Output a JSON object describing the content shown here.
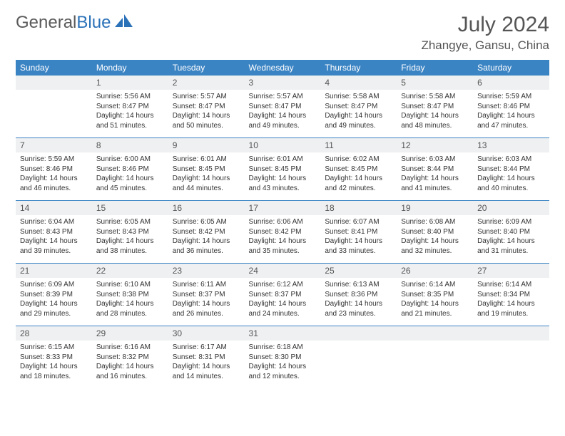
{
  "logo": {
    "text1": "General",
    "text2": "Blue"
  },
  "title": "July 2024",
  "location": "Zhangye, Gansu, China",
  "headers": [
    "Sunday",
    "Monday",
    "Tuesday",
    "Wednesday",
    "Thursday",
    "Friday",
    "Saturday"
  ],
  "colors": {
    "header_bg": "#3b84c4",
    "header_text": "#ffffff",
    "daynum_bg": "#eef0f1",
    "rule": "#3b84c4",
    "page_bg": "#ffffff",
    "text": "#333333",
    "title_color": "#555555"
  },
  "weeks": [
    {
      "nums": [
        "",
        "1",
        "2",
        "3",
        "4",
        "5",
        "6"
      ],
      "cells": [
        [],
        [
          "Sunrise: 5:56 AM",
          "Sunset: 8:47 PM",
          "Daylight: 14 hours",
          "and 51 minutes."
        ],
        [
          "Sunrise: 5:57 AM",
          "Sunset: 8:47 PM",
          "Daylight: 14 hours",
          "and 50 minutes."
        ],
        [
          "Sunrise: 5:57 AM",
          "Sunset: 8:47 PM",
          "Daylight: 14 hours",
          "and 49 minutes."
        ],
        [
          "Sunrise: 5:58 AM",
          "Sunset: 8:47 PM",
          "Daylight: 14 hours",
          "and 49 minutes."
        ],
        [
          "Sunrise: 5:58 AM",
          "Sunset: 8:47 PM",
          "Daylight: 14 hours",
          "and 48 minutes."
        ],
        [
          "Sunrise: 5:59 AM",
          "Sunset: 8:46 PM",
          "Daylight: 14 hours",
          "and 47 minutes."
        ]
      ]
    },
    {
      "nums": [
        "7",
        "8",
        "9",
        "10",
        "11",
        "12",
        "13"
      ],
      "cells": [
        [
          "Sunrise: 5:59 AM",
          "Sunset: 8:46 PM",
          "Daylight: 14 hours",
          "and 46 minutes."
        ],
        [
          "Sunrise: 6:00 AM",
          "Sunset: 8:46 PM",
          "Daylight: 14 hours",
          "and 45 minutes."
        ],
        [
          "Sunrise: 6:01 AM",
          "Sunset: 8:45 PM",
          "Daylight: 14 hours",
          "and 44 minutes."
        ],
        [
          "Sunrise: 6:01 AM",
          "Sunset: 8:45 PM",
          "Daylight: 14 hours",
          "and 43 minutes."
        ],
        [
          "Sunrise: 6:02 AM",
          "Sunset: 8:45 PM",
          "Daylight: 14 hours",
          "and 42 minutes."
        ],
        [
          "Sunrise: 6:03 AM",
          "Sunset: 8:44 PM",
          "Daylight: 14 hours",
          "and 41 minutes."
        ],
        [
          "Sunrise: 6:03 AM",
          "Sunset: 8:44 PM",
          "Daylight: 14 hours",
          "and 40 minutes."
        ]
      ]
    },
    {
      "nums": [
        "14",
        "15",
        "16",
        "17",
        "18",
        "19",
        "20"
      ],
      "cells": [
        [
          "Sunrise: 6:04 AM",
          "Sunset: 8:43 PM",
          "Daylight: 14 hours",
          "and 39 minutes."
        ],
        [
          "Sunrise: 6:05 AM",
          "Sunset: 8:43 PM",
          "Daylight: 14 hours",
          "and 38 minutes."
        ],
        [
          "Sunrise: 6:05 AM",
          "Sunset: 8:42 PM",
          "Daylight: 14 hours",
          "and 36 minutes."
        ],
        [
          "Sunrise: 6:06 AM",
          "Sunset: 8:42 PM",
          "Daylight: 14 hours",
          "and 35 minutes."
        ],
        [
          "Sunrise: 6:07 AM",
          "Sunset: 8:41 PM",
          "Daylight: 14 hours",
          "and 33 minutes."
        ],
        [
          "Sunrise: 6:08 AM",
          "Sunset: 8:40 PM",
          "Daylight: 14 hours",
          "and 32 minutes."
        ],
        [
          "Sunrise: 6:09 AM",
          "Sunset: 8:40 PM",
          "Daylight: 14 hours",
          "and 31 minutes."
        ]
      ]
    },
    {
      "nums": [
        "21",
        "22",
        "23",
        "24",
        "25",
        "26",
        "27"
      ],
      "cells": [
        [
          "Sunrise: 6:09 AM",
          "Sunset: 8:39 PM",
          "Daylight: 14 hours",
          "and 29 minutes."
        ],
        [
          "Sunrise: 6:10 AM",
          "Sunset: 8:38 PM",
          "Daylight: 14 hours",
          "and 28 minutes."
        ],
        [
          "Sunrise: 6:11 AM",
          "Sunset: 8:37 PM",
          "Daylight: 14 hours",
          "and 26 minutes."
        ],
        [
          "Sunrise: 6:12 AM",
          "Sunset: 8:37 PM",
          "Daylight: 14 hours",
          "and 24 minutes."
        ],
        [
          "Sunrise: 6:13 AM",
          "Sunset: 8:36 PM",
          "Daylight: 14 hours",
          "and 23 minutes."
        ],
        [
          "Sunrise: 6:14 AM",
          "Sunset: 8:35 PM",
          "Daylight: 14 hours",
          "and 21 minutes."
        ],
        [
          "Sunrise: 6:14 AM",
          "Sunset: 8:34 PM",
          "Daylight: 14 hours",
          "and 19 minutes."
        ]
      ]
    },
    {
      "nums": [
        "28",
        "29",
        "30",
        "31",
        "",
        "",
        ""
      ],
      "cells": [
        [
          "Sunrise: 6:15 AM",
          "Sunset: 8:33 PM",
          "Daylight: 14 hours",
          "and 18 minutes."
        ],
        [
          "Sunrise: 6:16 AM",
          "Sunset: 8:32 PM",
          "Daylight: 14 hours",
          "and 16 minutes."
        ],
        [
          "Sunrise: 6:17 AM",
          "Sunset: 8:31 PM",
          "Daylight: 14 hours",
          "and 14 minutes."
        ],
        [
          "Sunrise: 6:18 AM",
          "Sunset: 8:30 PM",
          "Daylight: 14 hours",
          "and 12 minutes."
        ],
        [],
        [],
        []
      ]
    }
  ]
}
